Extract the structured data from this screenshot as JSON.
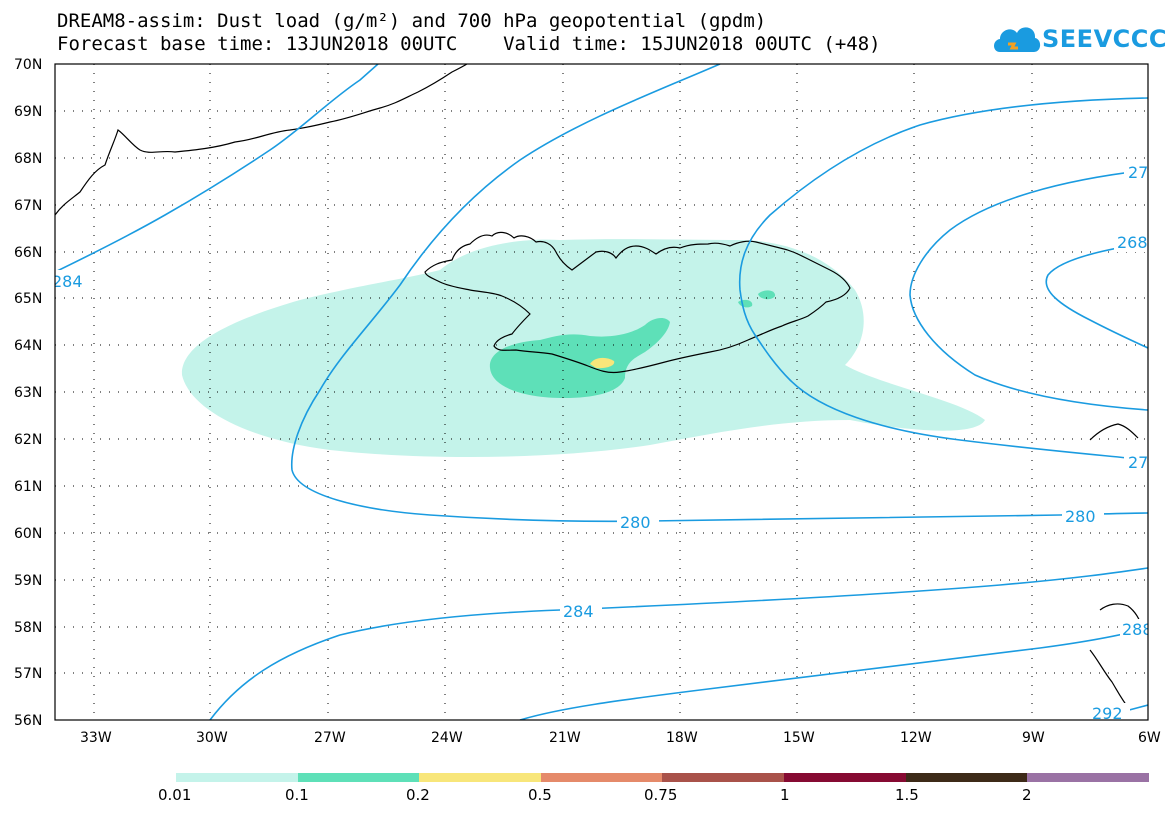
{
  "header": {
    "title_line1": "DREAM8-assim: Dust load (g/m²) and 700 hPa geopotential (gpdm)",
    "title_line2": "Forecast base time: 13JUN2018 00UTC    Valid time: 15JUN2018 00UTC (+48)"
  },
  "logo": {
    "text": "SEEVCCC",
    "icon": "cloud-icon"
  },
  "map": {
    "lon_range": [
      -34.5,
      -6
    ],
    "lat_range": [
      56,
      70
    ],
    "lon_ticks": [
      "33W",
      "30W",
      "27W",
      "24W",
      "21W",
      "18W",
      "15W",
      "12W",
      "9W",
      "6W"
    ],
    "lat_ticks": [
      "56N",
      "57N",
      "58N",
      "59N",
      "60N",
      "61N",
      "62N",
      "63N",
      "64N",
      "65N",
      "66N",
      "67N",
      "68N",
      "69N",
      "70N"
    ],
    "contour_labels": [
      "284",
      "268",
      "27",
      "27",
      "280",
      "280",
      "284",
      "288",
      "292"
    ]
  },
  "colorbar": {
    "labels": [
      "0.01",
      "0.1",
      "0.2",
      "0.5",
      "0.75",
      "1",
      "1.5",
      "2"
    ],
    "colors": [
      "#c4f3ea",
      "#5ee0b8",
      "#f8e67a",
      "#e58a6a",
      "#a9524a",
      "#860a32",
      "#3d2a18",
      "#9a72a4"
    ]
  },
  "colors": {
    "contour": "#1a9be0",
    "dust_low": "#c4f3ea",
    "dust_mid": "#5ee0b8",
    "dust_high": "#f8e67a"
  }
}
